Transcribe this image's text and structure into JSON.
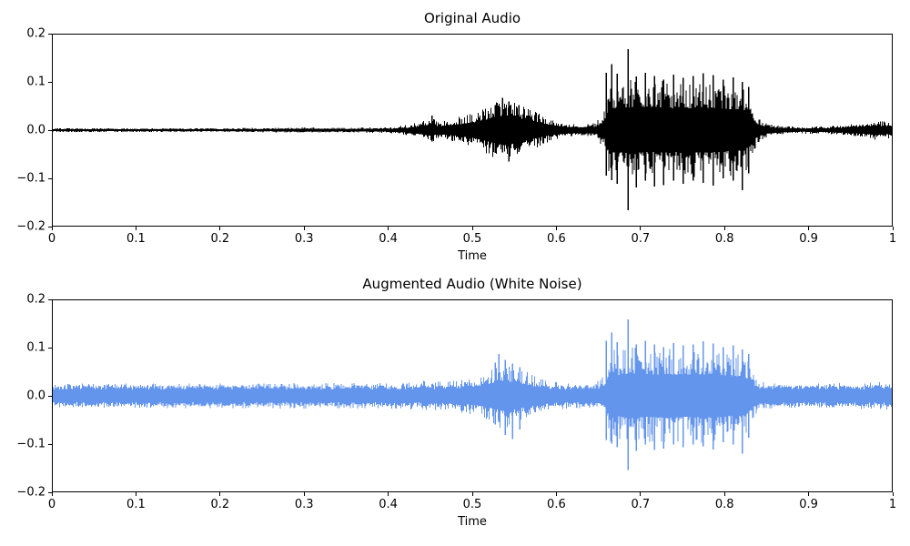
{
  "figure": {
    "background": "#ffffff",
    "text_color": "#000000"
  },
  "chart_data": [
    {
      "type": "line",
      "kind": "audio-waveform",
      "title": "Original Audio",
      "xlabel": "Time",
      "ylabel": "",
      "xlim": [
        0,
        1
      ],
      "ylim": [
        -0.2,
        0.2
      ],
      "grid": false,
      "legend": "none",
      "color": "#000000",
      "peak_amplitude": 0.17,
      "noise_floor": 0.0025,
      "seed": 7,
      "xticks": [
        {
          "label": "0",
          "value": 0.0
        },
        {
          "label": "0.1",
          "value": 0.1
        },
        {
          "label": "0.2",
          "value": 0.2
        },
        {
          "label": "0.3",
          "value": 0.3
        },
        {
          "label": "0.4",
          "value": 0.4
        },
        {
          "label": "0.5",
          "value": 0.5
        },
        {
          "label": "0.6",
          "value": 0.6
        },
        {
          "label": "0.7",
          "value": 0.7
        },
        {
          "label": "0.8",
          "value": 0.8
        },
        {
          "label": "0.9",
          "value": 0.9
        },
        {
          "label": "1",
          "value": 1.0
        }
      ],
      "yticks": [
        {
          "label": "0.2",
          "value": 0.2
        },
        {
          "label": "0.1",
          "value": 0.1
        },
        {
          "label": "0.0",
          "value": 0.0
        },
        {
          "label": "−0.1",
          "value": -0.1
        },
        {
          "label": "−0.2",
          "value": -0.2
        }
      ],
      "envelope": [
        [
          0.0,
          0.004
        ],
        [
          0.1,
          0.004
        ],
        [
          0.2,
          0.004
        ],
        [
          0.28,
          0.005
        ],
        [
          0.3,
          0.006
        ],
        [
          0.35,
          0.005
        ],
        [
          0.4,
          0.006
        ],
        [
          0.42,
          0.01
        ],
        [
          0.435,
          0.016
        ],
        [
          0.45,
          0.026
        ],
        [
          0.46,
          0.018
        ],
        [
          0.475,
          0.024
        ],
        [
          0.49,
          0.03
        ],
        [
          0.505,
          0.038
        ],
        [
          0.52,
          0.052
        ],
        [
          0.535,
          0.066
        ],
        [
          0.548,
          0.063
        ],
        [
          0.56,
          0.052
        ],
        [
          0.572,
          0.042
        ],
        [
          0.585,
          0.03
        ],
        [
          0.6,
          0.02
        ],
        [
          0.615,
          0.014
        ],
        [
          0.632,
          0.012
        ],
        [
          0.648,
          0.016
        ],
        [
          0.658,
          0.04
        ],
        [
          0.664,
          0.105
        ],
        [
          0.675,
          0.1
        ],
        [
          0.69,
          0.108
        ],
        [
          0.71,
          0.1
        ],
        [
          0.73,
          0.104
        ],
        [
          0.75,
          0.1
        ],
        [
          0.77,
          0.104
        ],
        [
          0.79,
          0.102
        ],
        [
          0.81,
          0.096
        ],
        [
          0.825,
          0.094
        ],
        [
          0.832,
          0.064
        ],
        [
          0.84,
          0.028
        ],
        [
          0.852,
          0.014
        ],
        [
          0.87,
          0.009
        ],
        [
          0.895,
          0.007
        ],
        [
          0.92,
          0.008
        ],
        [
          0.94,
          0.011
        ],
        [
          0.96,
          0.015
        ],
        [
          0.98,
          0.021
        ],
        [
          1.0,
          0.018
        ]
      ],
      "spikes": [
        [
          0.452,
          0.031,
          -0.024
        ],
        [
          0.528,
          0.052,
          -0.048
        ],
        [
          0.536,
          0.068,
          -0.047
        ],
        [
          0.544,
          0.06,
          -0.066
        ],
        [
          0.556,
          0.052,
          -0.046
        ],
        [
          0.66,
          0.12,
          -0.095
        ],
        [
          0.666,
          0.138,
          -0.105
        ],
        [
          0.673,
          0.118,
          -0.112
        ],
        [
          0.686,
          0.17,
          -0.168
        ],
        [
          0.696,
          0.112,
          -0.12
        ],
        [
          0.706,
          0.12,
          -0.106
        ],
        [
          0.717,
          0.113,
          -0.118
        ],
        [
          0.728,
          0.106,
          -0.115
        ],
        [
          0.74,
          0.116,
          -0.106
        ],
        [
          0.752,
          0.11,
          -0.112
        ],
        [
          0.764,
          0.113,
          -0.106
        ],
        [
          0.776,
          0.119,
          -0.11
        ],
        [
          0.788,
          0.115,
          -0.116
        ],
        [
          0.8,
          0.106,
          -0.101
        ],
        [
          0.812,
          0.111,
          -0.106
        ],
        [
          0.822,
          0.101,
          -0.126
        ],
        [
          0.83,
          0.091,
          -0.091
        ]
      ]
    },
    {
      "type": "line",
      "kind": "audio-waveform",
      "title": "Augmented Audio (White Noise)",
      "xlabel": "Time",
      "ylabel": "",
      "xlim": [
        0,
        1
      ],
      "ylim": [
        -0.2,
        0.2
      ],
      "grid": false,
      "legend": "none",
      "color": "#6495ED",
      "peak_amplitude": 0.16,
      "noise_floor": 0.022,
      "seed": 13,
      "xticks": [
        {
          "label": "0",
          "value": 0.0
        },
        {
          "label": "0.1",
          "value": 0.1
        },
        {
          "label": "0.2",
          "value": 0.2
        },
        {
          "label": "0.3",
          "value": 0.3
        },
        {
          "label": "0.4",
          "value": 0.4
        },
        {
          "label": "0.5",
          "value": 0.5
        },
        {
          "label": "0.6",
          "value": 0.6
        },
        {
          "label": "0.7",
          "value": 0.7
        },
        {
          "label": "0.8",
          "value": 0.8
        },
        {
          "label": "0.9",
          "value": 0.9
        },
        {
          "label": "1",
          "value": 1.0
        }
      ],
      "yticks": [
        {
          "label": "0.2",
          "value": 0.2
        },
        {
          "label": "0.1",
          "value": 0.1
        },
        {
          "label": "0.0",
          "value": 0.0
        },
        {
          "label": "−0.1",
          "value": -0.1
        },
        {
          "label": "−0.2",
          "value": -0.2
        }
      ],
      "envelope": [
        [
          0.0,
          0.026
        ],
        [
          0.1,
          0.026
        ],
        [
          0.2,
          0.026
        ],
        [
          0.3,
          0.027
        ],
        [
          0.4,
          0.027
        ],
        [
          0.42,
          0.028
        ],
        [
          0.435,
          0.03
        ],
        [
          0.45,
          0.034
        ],
        [
          0.46,
          0.03
        ],
        [
          0.475,
          0.033
        ],
        [
          0.49,
          0.037
        ],
        [
          0.505,
          0.043
        ],
        [
          0.52,
          0.055
        ],
        [
          0.535,
          0.068
        ],
        [
          0.548,
          0.065
        ],
        [
          0.56,
          0.055
        ],
        [
          0.572,
          0.045
        ],
        [
          0.585,
          0.035
        ],
        [
          0.6,
          0.029
        ],
        [
          0.615,
          0.027
        ],
        [
          0.632,
          0.026
        ],
        [
          0.648,
          0.028
        ],
        [
          0.658,
          0.045
        ],
        [
          0.664,
          0.1
        ],
        [
          0.675,
          0.096
        ],
        [
          0.69,
          0.104
        ],
        [
          0.71,
          0.096
        ],
        [
          0.73,
          0.1
        ],
        [
          0.75,
          0.096
        ],
        [
          0.77,
          0.1
        ],
        [
          0.79,
          0.098
        ],
        [
          0.81,
          0.092
        ],
        [
          0.825,
          0.09
        ],
        [
          0.832,
          0.062
        ],
        [
          0.84,
          0.032
        ],
        [
          0.852,
          0.028
        ],
        [
          0.87,
          0.026
        ],
        [
          0.895,
          0.026
        ],
        [
          0.92,
          0.026
        ],
        [
          0.94,
          0.027
        ],
        [
          0.96,
          0.028
        ],
        [
          0.98,
          0.03
        ],
        [
          1.0,
          0.028
        ]
      ],
      "spikes": [
        [
          0.528,
          0.07,
          -0.06
        ],
        [
          0.532,
          0.088,
          -0.055
        ],
        [
          0.54,
          0.075,
          -0.082
        ],
        [
          0.548,
          0.068,
          -0.09
        ],
        [
          0.557,
          0.06,
          -0.07
        ],
        [
          0.66,
          0.115,
          -0.092
        ],
        [
          0.666,
          0.132,
          -0.1
        ],
        [
          0.673,
          0.112,
          -0.108
        ],
        [
          0.686,
          0.16,
          -0.155
        ],
        [
          0.696,
          0.108,
          -0.115
        ],
        [
          0.706,
          0.115,
          -0.102
        ],
        [
          0.717,
          0.108,
          -0.113
        ],
        [
          0.728,
          0.102,
          -0.11
        ],
        [
          0.74,
          0.111,
          -0.102
        ],
        [
          0.752,
          0.106,
          -0.108
        ],
        [
          0.764,
          0.108,
          -0.102
        ],
        [
          0.776,
          0.114,
          -0.106
        ],
        [
          0.788,
          0.11,
          -0.112
        ],
        [
          0.8,
          0.102,
          -0.097
        ],
        [
          0.812,
          0.106,
          -0.102
        ],
        [
          0.822,
          0.097,
          -0.121
        ],
        [
          0.83,
          0.088,
          -0.088
        ]
      ]
    }
  ]
}
